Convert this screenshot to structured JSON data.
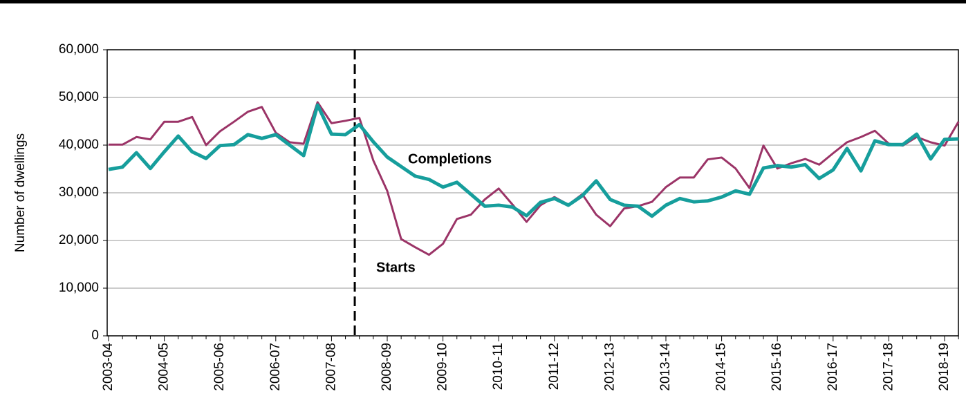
{
  "chart_data": {
    "type": "line",
    "y_label": "Number  of dwellings",
    "categories": [
      "2003-04",
      null,
      null,
      null,
      "2004-05",
      null,
      null,
      null,
      "2005-06",
      null,
      null,
      null,
      "2006-07",
      null,
      null,
      null,
      "2007-08",
      null,
      null,
      null,
      "2008-09",
      null,
      null,
      null,
      "2009-10",
      null,
      null,
      null,
      "2010-11",
      null,
      null,
      null,
      "2011-12",
      null,
      null,
      null,
      "2012-13",
      null,
      null,
      null,
      "2013-14",
      null,
      null,
      null,
      "2014-15",
      null,
      null,
      null,
      "2015-16",
      null,
      null,
      null,
      "2016-17",
      null,
      null,
      null,
      "2017-18",
      null,
      null,
      null,
      "2018-19",
      null
    ],
    "series": [
      {
        "name": "Starts",
        "color": "#9b3467",
        "width": 3,
        "values": [
          40100,
          40100,
          41700,
          41200,
          44900,
          44900,
          45900,
          40000,
          42900,
          44900,
          47000,
          48000,
          42600,
          40600,
          40300,
          49000,
          44600,
          45100,
          45700,
          36800,
          30400,
          20300,
          18600,
          17000,
          19300,
          24500,
          25400,
          28600,
          30900,
          27500,
          23900,
          27400,
          29100,
          27500,
          29700,
          25400,
          23000,
          26700,
          27200,
          28100,
          31200,
          33200,
          33200,
          37000,
          37400,
          35100,
          31000,
          39900,
          35100,
          36200,
          37100,
          35900,
          38300,
          40600,
          41700,
          43000,
          40300,
          39900,
          41700,
          40600,
          39900,
          44900
        ]
      },
      {
        "name": "Completions",
        "color": "#169e9c",
        "width": 5,
        "values": [
          34900,
          35400,
          38400,
          35100,
          38600,
          41900,
          38600,
          37200,
          39900,
          40100,
          42200,
          41400,
          42200,
          40000,
          37800,
          48400,
          42300,
          42200,
          44300,
          40700,
          37500,
          35500,
          33500,
          32800,
          31200,
          32200,
          29700,
          27200,
          27400,
          27000,
          25200,
          28000,
          28800,
          27400,
          29400,
          32500,
          28600,
          27400,
          27200,
          25100,
          27400,
          28800,
          28100,
          28300,
          29100,
          30400,
          29700,
          35200,
          35700,
          35400,
          35900,
          33000,
          34800,
          39300,
          34600,
          40900,
          40100,
          40100,
          42300,
          37100,
          41200,
          41300
        ]
      }
    ],
    "ylim": [
      0,
      60000
    ],
    "yticks": [
      0,
      {
        "value": 10000,
        "label": "10,000"
      },
      {
        "value": 20000,
        "label": "20,000"
      },
      {
        "value": 30000,
        "label": "30,000"
      },
      {
        "value": 40000,
        "label": "40,000"
      },
      {
        "value": 50000,
        "label": "50,000"
      },
      {
        "value": 60000,
        "label": "60,000"
      }
    ],
    "grid": true,
    "divider_index": 17.67
  }
}
